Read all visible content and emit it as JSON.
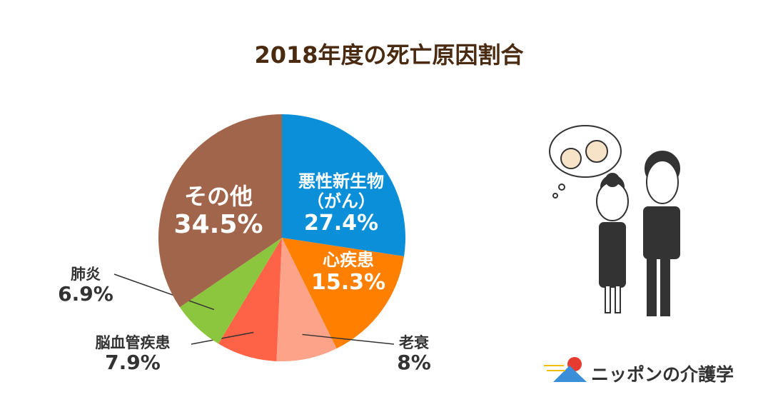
{
  "chart_data": {
    "type": "pie",
    "title": "2018年度の死亡原因割合",
    "categories": [
      "悪性新生物\n（がん）",
      "心疾患",
      "老衰",
      "脳血管疾患",
      "肺炎",
      "その他"
    ],
    "values": [
      27.4,
      15.3,
      8,
      7.9,
      6.9,
      34.5
    ],
    "value_labels": [
      "27.4%",
      "15.3%",
      "8%",
      "7.9%",
      "6.9%",
      "34.5%"
    ],
    "colors": [
      "#0b8fd8",
      "#ff7f00",
      "#fca38a",
      "#ff6347",
      "#8cc63f",
      "#a0654a"
    ]
  },
  "logo": "ニッポンの介護学"
}
